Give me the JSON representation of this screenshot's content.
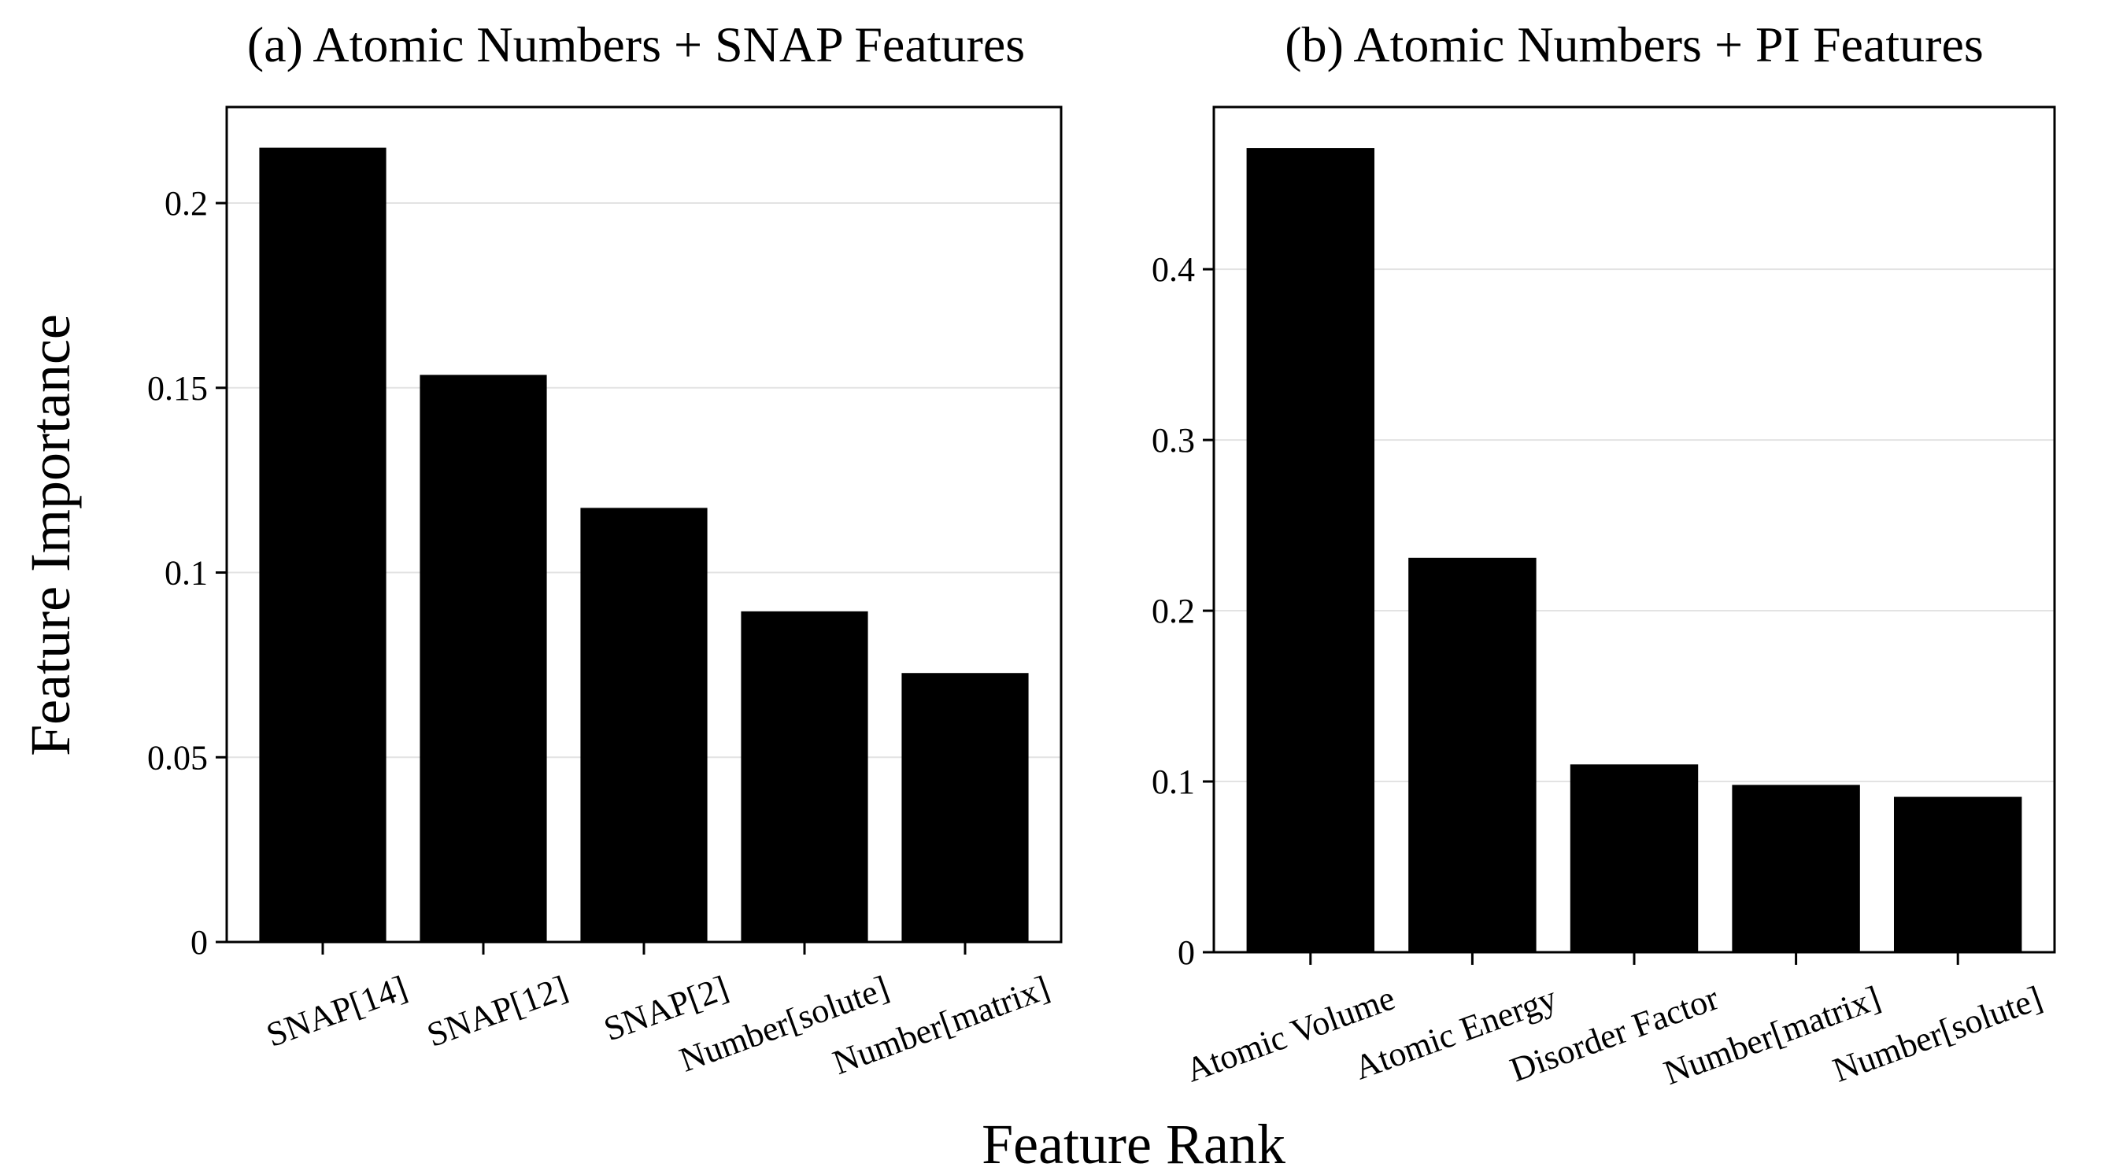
{
  "figure": {
    "ylabel": "Feature Importance",
    "xlabel": "Feature Rank"
  },
  "chart_data": [
    {
      "type": "bar",
      "title": "(a) Atomic Numbers + SNAP Features",
      "categories": [
        "SNAP[14]",
        "SNAP[12]",
        "SNAP[2]",
        "Number[solute]",
        "Number[matrix]"
      ],
      "values": [
        0.215,
        0.1535,
        0.1175,
        0.0895,
        0.0728
      ],
      "ylim": [
        0,
        0.226
      ],
      "yticks": [
        0,
        0.05,
        0.1,
        0.15,
        0.2
      ],
      "ytick_labels": [
        "0",
        "0.05",
        "0.1",
        "0.15",
        "0.2"
      ],
      "grid": "horizontal",
      "bar_color": "#000000"
    },
    {
      "type": "bar",
      "title": "(b) Atomic Numbers + PI Features",
      "categories": [
        "Atomic Volume",
        "Atomic Energy",
        "Disorder Factor",
        "Number[matrix]",
        "Number[solute]"
      ],
      "values": [
        0.471,
        0.231,
        0.11,
        0.098,
        0.091
      ],
      "ylim": [
        0,
        0.495
      ],
      "yticks": [
        0,
        0.1,
        0.2,
        0.3,
        0.4
      ],
      "ytick_labels": [
        "0",
        "0.1",
        "0.2",
        "0.3",
        "0.4"
      ],
      "grid": "horizontal",
      "bar_color": "#000000"
    }
  ]
}
